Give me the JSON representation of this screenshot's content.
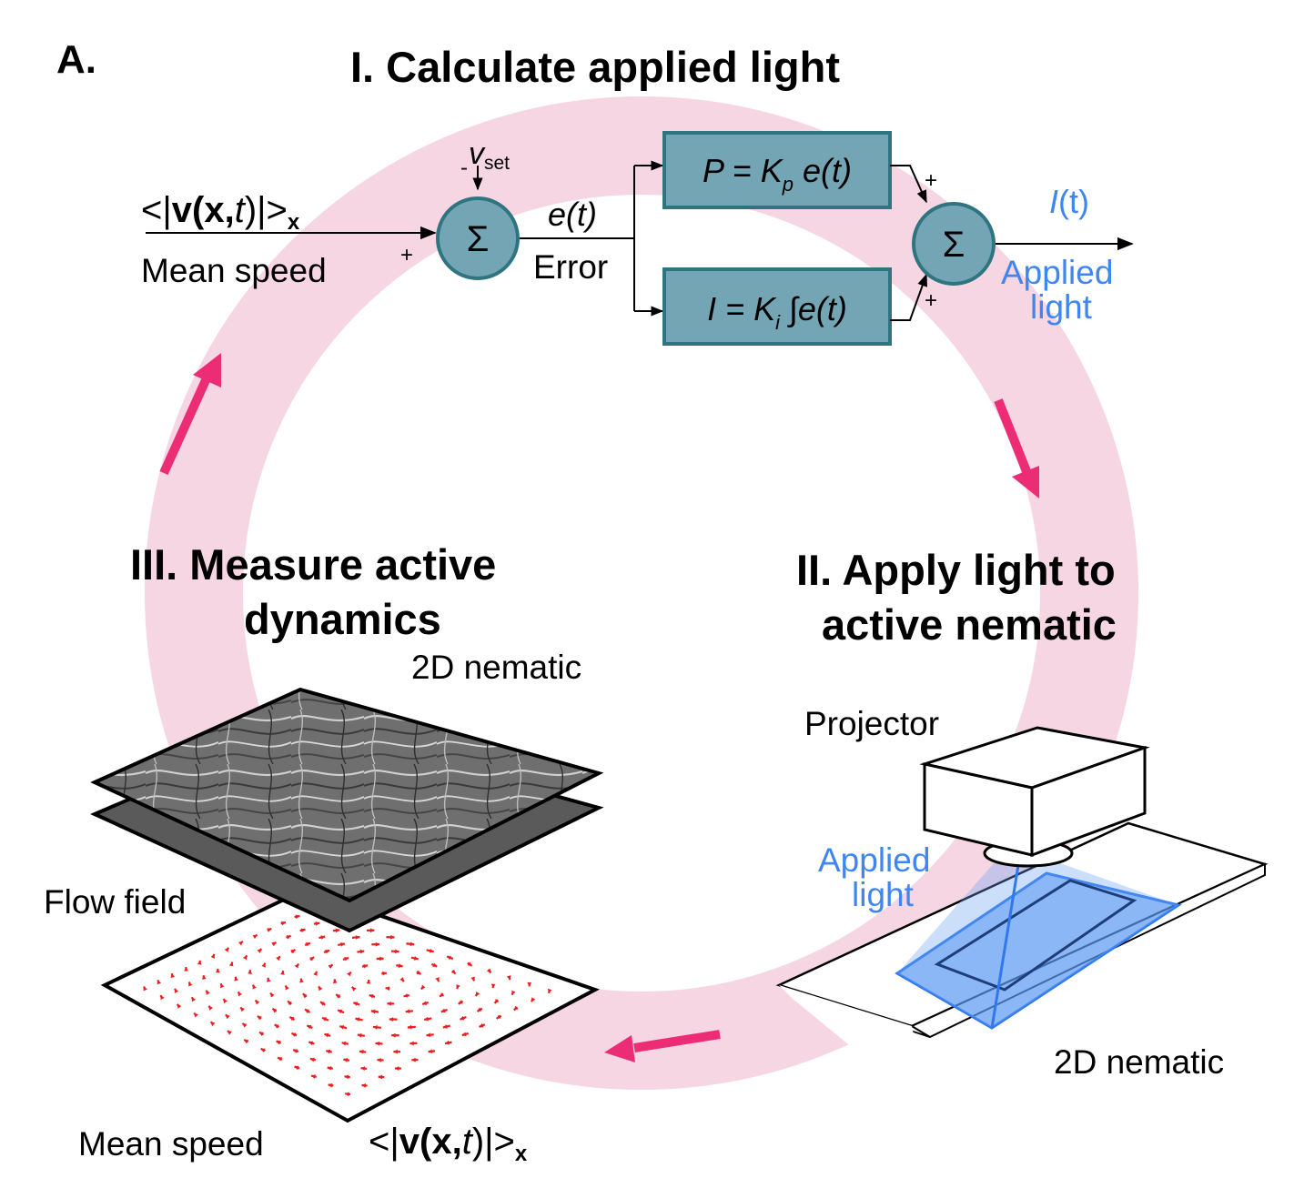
{
  "panel_label": "A.",
  "step1": {
    "title": "I. Calculate applied light"
  },
  "step2": {
    "line1": "II. Apply light to",
    "line2": "active nematic"
  },
  "step3": {
    "line1": "III. Measure active",
    "line2": "dynamics"
  },
  "controller": {
    "input_expr": {
      "lt": "<|",
      "v": "v",
      "open": "(",
      "x": "x",
      "comma": ",",
      "t": "t",
      "close": ")|>",
      "sub": "x"
    },
    "input_label": "Mean speed",
    "plus": "+",
    "minus": "-",
    "setpoint": {
      "v": "v",
      "sub": "set"
    },
    "sum_symbol": "Σ",
    "error_expr": "e(t)",
    "error_label": "Error",
    "p_block": {
      "lhs": "P = K",
      "sub": "p",
      "rhs": " e(t)"
    },
    "i_block": {
      "lhs": "I = K",
      "sub": "i",
      "rhs": " ∫e(t)"
    },
    "output_expr": {
      "i": "I",
      "rest": "(t)"
    },
    "output_label_line1": "Applied",
    "output_label_line2": "light"
  },
  "setup": {
    "projector_label": "Projector",
    "light_label_line1": "Applied",
    "light_label_line2": "light",
    "sample_label": "2D nematic"
  },
  "measure": {
    "nematic_label": "2D nematic",
    "flow_label": "Flow field",
    "speed_label": "Mean speed",
    "speed_expr": {
      "lt": "<|",
      "v": "v",
      "open": "(",
      "x": "x",
      "comma": ",",
      "t": "t",
      "close": ")|>",
      "sub": "x"
    }
  },
  "colors": {
    "ring": "#f7d6e3",
    "cycle_arrow": "#ec2d76",
    "block_fill": "#74a5b5",
    "block_stroke": "#2f7580",
    "light_blue": "#3f86f0",
    "flow_arrow": "#ee1c1c"
  },
  "icons": [
    "summing-junction-icon",
    "projector-icon",
    "cycle-arrow-icon"
  ]
}
